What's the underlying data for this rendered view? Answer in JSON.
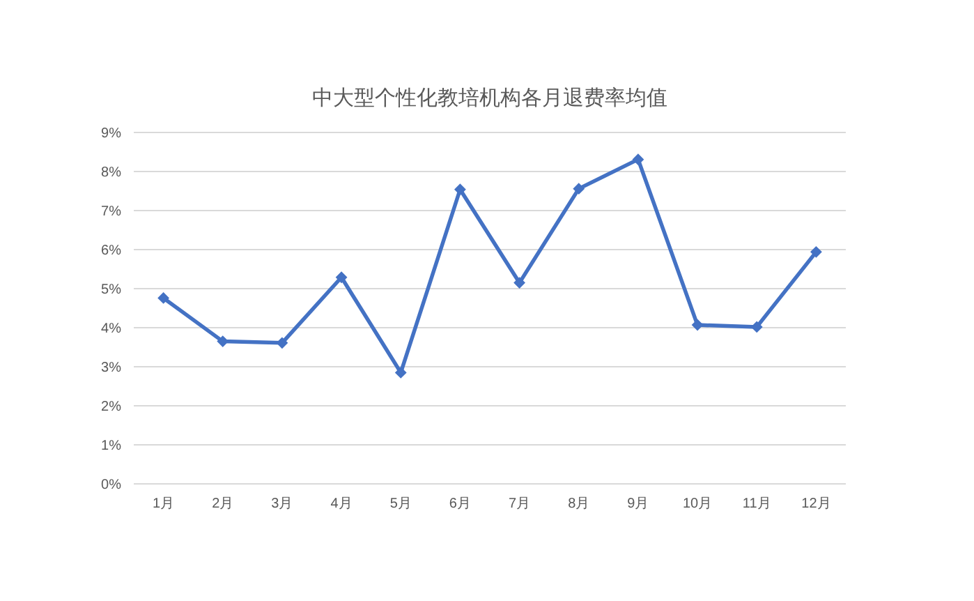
{
  "chart_data": {
    "type": "line",
    "title": "中大型个性化教培机构各月退费率均值",
    "categories": [
      "1月",
      "2月",
      "3月",
      "4月",
      "5月",
      "6月",
      "7月",
      "8月",
      "9月",
      "10月",
      "11月",
      "12月"
    ],
    "series": [
      {
        "color": "#4472c4",
        "values": [
          4.76,
          3.65,
          3.61,
          5.29,
          2.85,
          7.54,
          5.15,
          7.56,
          8.31,
          4.07,
          4.02,
          5.94
        ]
      }
    ],
    "ylim": [
      0,
      9
    ],
    "yticks": [
      {
        "value": 0,
        "label": "0%"
      },
      {
        "value": 1,
        "label": "1%"
      },
      {
        "value": 2,
        "label": "2%"
      },
      {
        "value": 3,
        "label": "3%"
      },
      {
        "value": 4,
        "label": "4%"
      },
      {
        "value": 5,
        "label": "5%"
      },
      {
        "value": 6,
        "label": "6%"
      },
      {
        "value": 7,
        "label": "7%"
      },
      {
        "value": 8,
        "label": "8%"
      },
      {
        "value": 9,
        "label": "9%"
      }
    ],
    "grid": "y",
    "marker": "diamond",
    "line_style": "solid"
  }
}
